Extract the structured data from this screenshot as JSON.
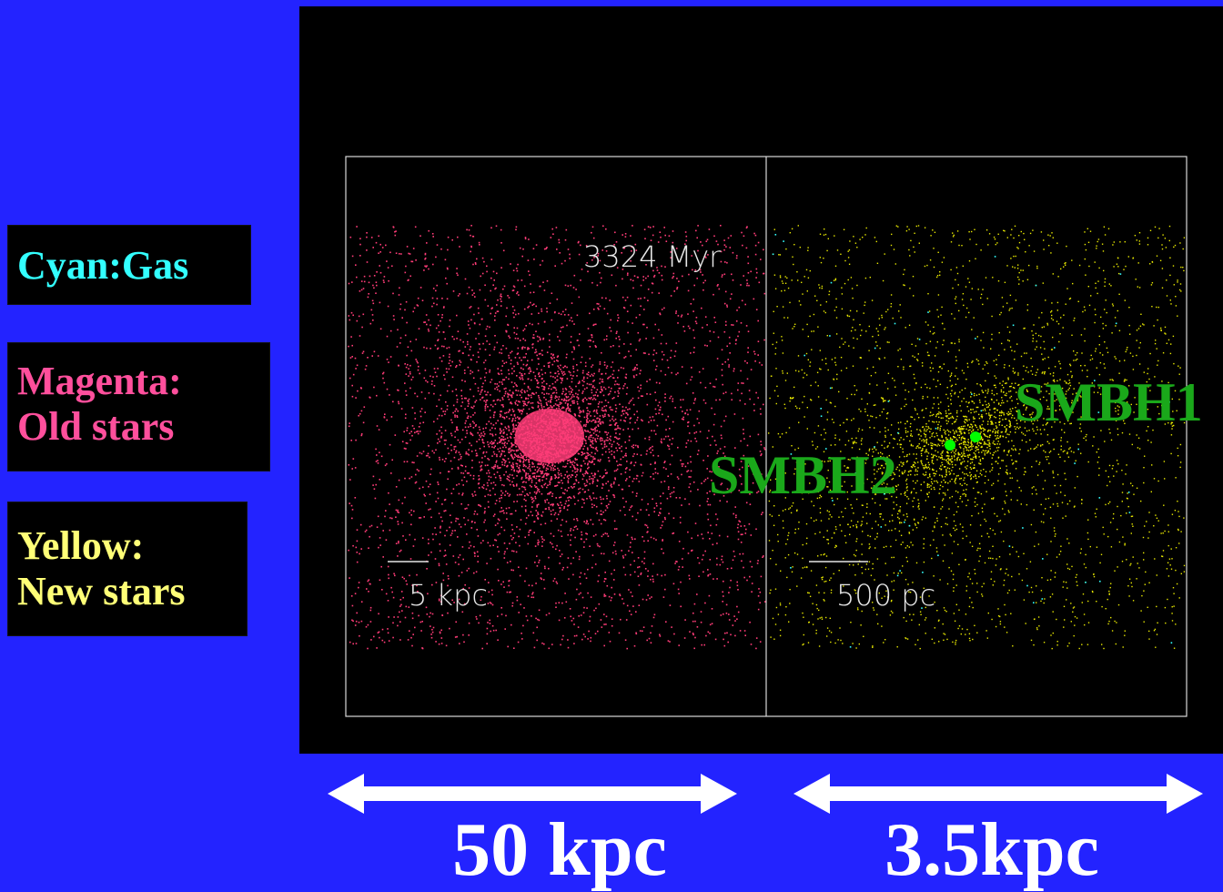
{
  "legend": {
    "gas": "Cyan:Gas",
    "old_stars_line1": "Magenta:",
    "old_stars_line2": "Old stars",
    "new_stars_line1": "Yellow:",
    "new_stars_line2": "New stars"
  },
  "simulation": {
    "time_label": "3324 Myr",
    "left_scale_bar": "5 kpc",
    "right_scale_bar": "500 pc",
    "smbh1_label": "SMBH1",
    "smbh2_label": "SMBH2"
  },
  "scales": {
    "left_span": "50 kpc",
    "right_span": "3.5kpc"
  },
  "colors": {
    "background": "#2323ff",
    "gas": "#33ffff",
    "old_stars": "#ff3c78",
    "new_stars": "#e8e800",
    "smbh": "#1aa81a",
    "smbh_marker": "#00ff00"
  }
}
